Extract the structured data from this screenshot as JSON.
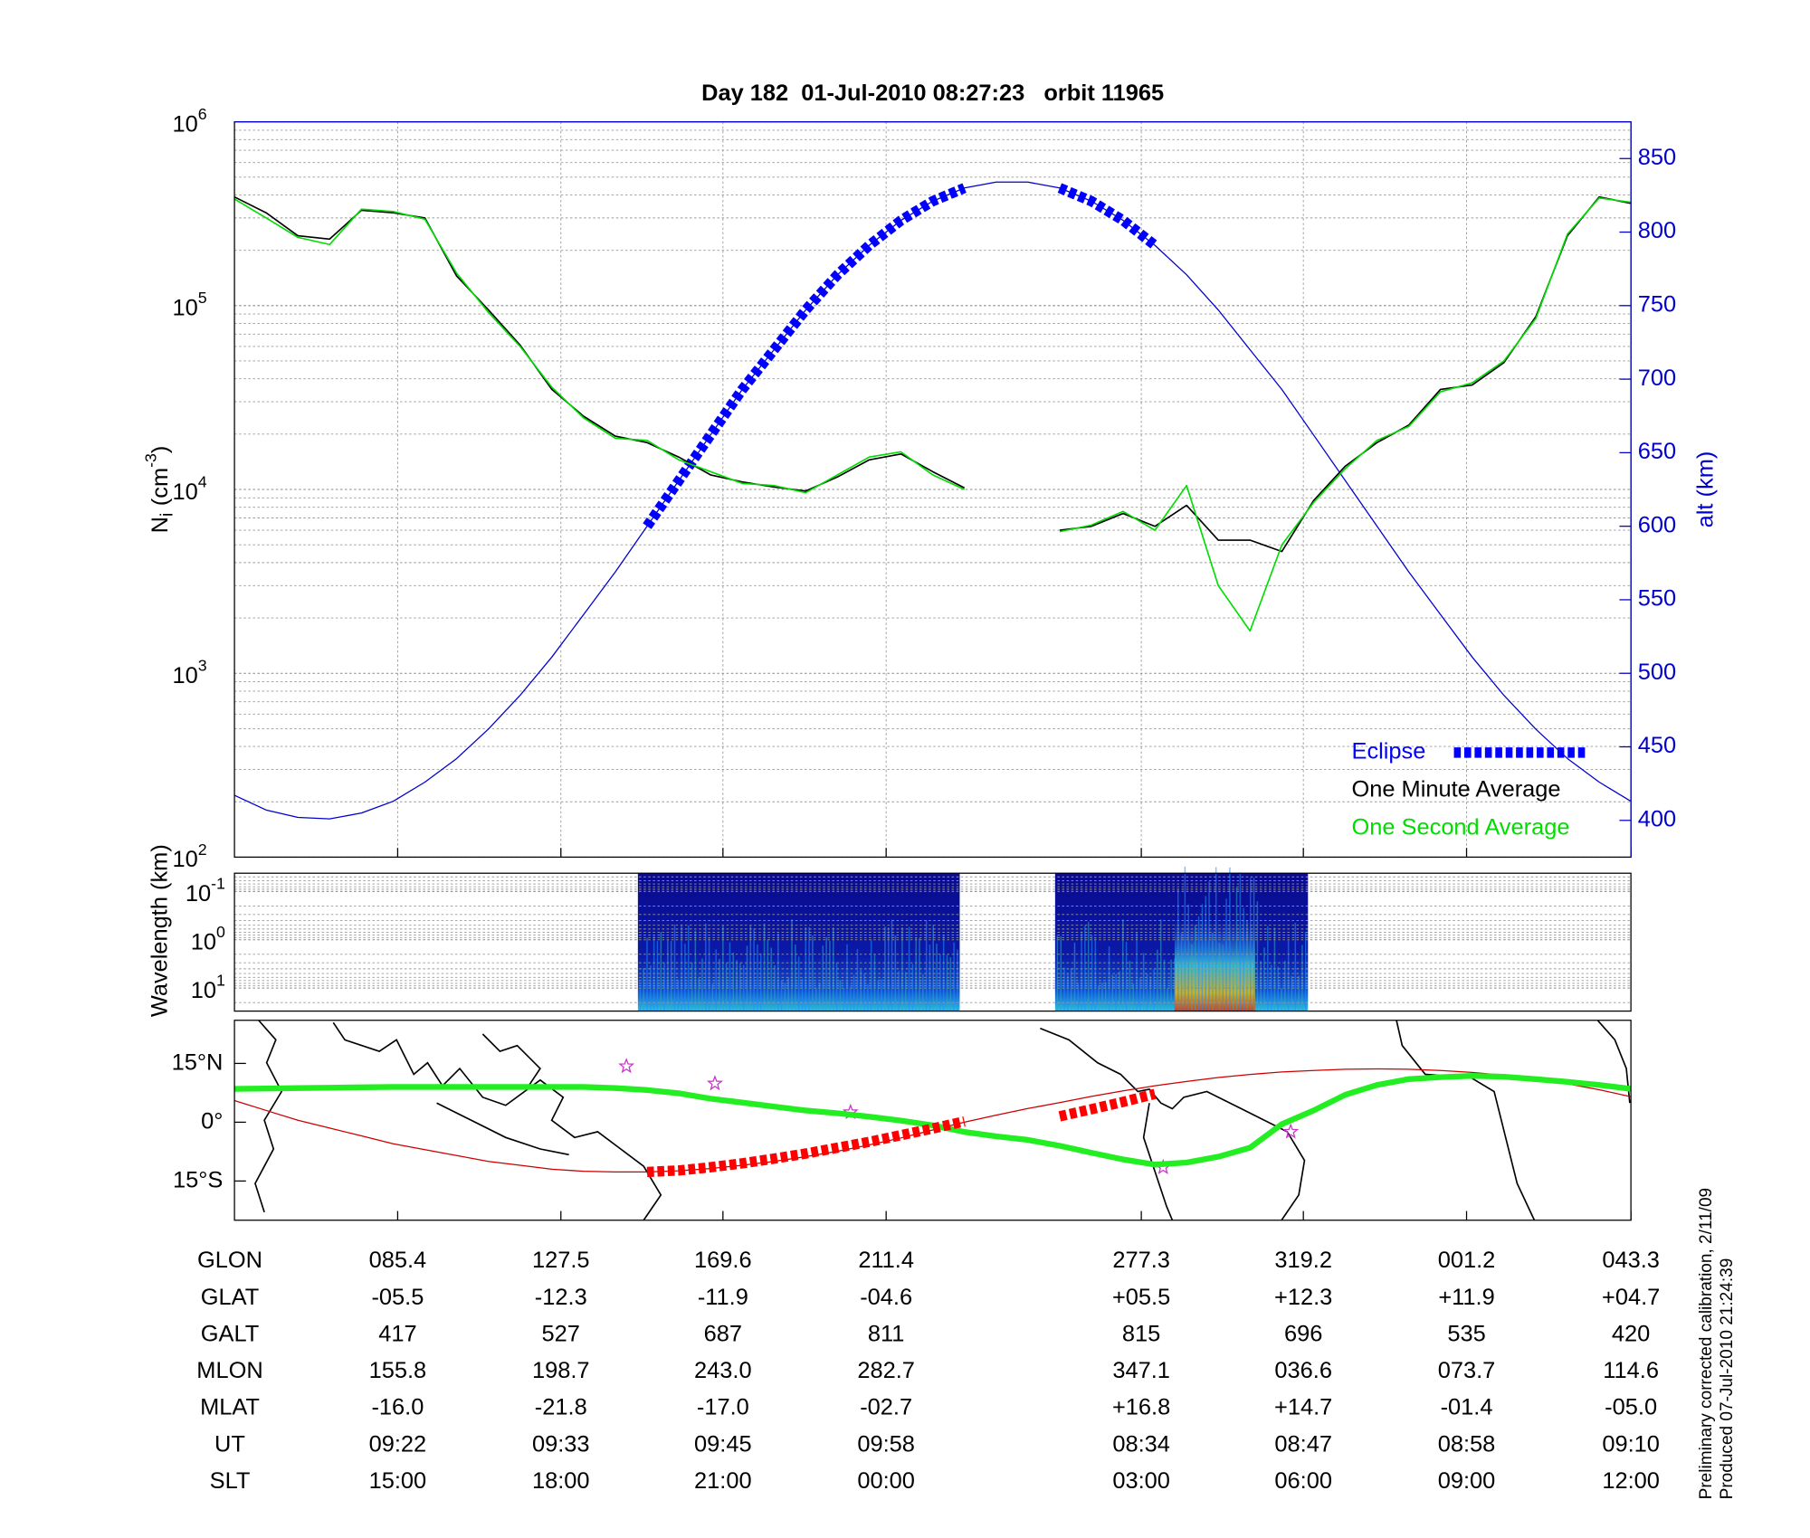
{
  "chart_data": [
    {
      "type": "line",
      "title": "Day 182  01-Jul-2010 08:27:23   orbit 11965",
      "ylabel": {
        "symbol": "N",
        "subscript": "i",
        "unit": "(cm",
        "exponent": "-3",
        "close": ")"
      },
      "y2label": "alt (km)",
      "yscale": "log",
      "ylim": [
        100,
        1000000
      ],
      "yticks": [
        {
          "value": 100,
          "label": "10",
          "exponent": "2"
        },
        {
          "value": 1000,
          "label": "10",
          "exponent": "3"
        },
        {
          "value": 10000,
          "label": "10",
          "exponent": "4"
        },
        {
          "value": 100000,
          "label": "10",
          "exponent": "5"
        },
        {
          "value": 1000000,
          "label": "10",
          "exponent": "6"
        }
      ],
      "y2lim": [
        375,
        875
      ],
      "y2ticks": [
        400,
        450,
        500,
        550,
        600,
        650,
        700,
        750,
        800,
        850
      ],
      "grid": true,
      "legend": "lower right",
      "series": [
        {
          "color": "#0000cc",
          "axis": "y2",
          "style": "thin",
          "values": [
            417,
            407,
            402,
            401,
            405,
            413,
            426,
            442,
            462,
            485,
            511,
            540,
            569,
            600,
            631,
            662,
            693,
            720,
            747,
            771,
            791,
            808,
            821,
            830,
            834,
            834,
            830,
            821,
            808,
            791,
            771,
            747,
            720,
            693,
            662,
            631,
            600,
            569,
            540,
            511,
            485,
            462,
            442,
            426,
            413
          ]
        },
        {
          "name": "Eclipse",
          "color": "#0000ff",
          "axis": "y2",
          "style": "dashed",
          "values": [
            null,
            null,
            null,
            null,
            null,
            null,
            null,
            null,
            null,
            null,
            null,
            null,
            null,
            600,
            631,
            662,
            693,
            720,
            747,
            771,
            791,
            808,
            821,
            830,
            null,
            null,
            830,
            821,
            808,
            791,
            null,
            null,
            null,
            null,
            null,
            null,
            null,
            null,
            null,
            null,
            null,
            null,
            null,
            null,
            null
          ]
        },
        {
          "name": "One Minute Average",
          "color": "#000000",
          "style": "normal",
          "values": [
            390000,
            320000,
            240000,
            230000,
            330000,
            320000,
            300000,
            145000,
            95000,
            61000,
            35000,
            25000,
            19500,
            18000,
            15000,
            12000,
            11000,
            10300,
            9800,
            11700,
            14500,
            15600,
            12500,
            10200,
            null,
            null,
            6000,
            6300,
            7400,
            6300,
            8200,
            5300,
            5300,
            4600,
            8700,
            13400,
            18000,
            22400,
            35000,
            37000,
            49000,
            87000,
            240000,
            390000,
            360000
          ]
        },
        {
          "name": "One Second Average",
          "color": "#00dd00",
          "style": "normal",
          "values": [
            380000,
            300000,
            235000,
            215000,
            335000,
            325000,
            295000,
            150000,
            92000,
            60000,
            36000,
            24500,
            19000,
            18500,
            14500,
            12500,
            10800,
            10500,
            9600,
            12000,
            15000,
            16000,
            12000,
            10000,
            null,
            null,
            5900,
            6400,
            7600,
            6000,
            10500,
            3000,
            1700,
            5000,
            8500,
            13000,
            18500,
            22000,
            34000,
            38000,
            50000,
            85000,
            245000,
            385000,
            365000
          ]
        }
      ]
    },
    {
      "type": "spectrogram",
      "ylabel": "Wavelength (km)",
      "yscale": "log",
      "ylim": [
        30,
        0.042
      ],
      "yticks": [
        {
          "value": 0.1,
          "label": "10",
          "exponent": "-1"
        },
        {
          "value": 1,
          "label": "10",
          "exponent": "0"
        },
        {
          "value": 10,
          "label": "10",
          "exponent": "1"
        }
      ]
    },
    {
      "type": "line",
      "ylim": [
        -25,
        26
      ],
      "yticks": [
        {
          "value": 15,
          "label": "15°N"
        },
        {
          "value": 0,
          "label": "0°"
        },
        {
          "value": -15,
          "label": "15°S"
        }
      ],
      "series": [
        {
          "color": "#cc0000",
          "style": "thin",
          "values": [
            5.5,
            3.0,
            0.5,
            -1.5,
            -3.5,
            -5.5,
            -7.0,
            -8.5,
            -10.0,
            -11.0,
            -12.0,
            -12.5,
            -12.7,
            -12.7,
            -12.4,
            -11.8,
            -11.0,
            -10.0,
            -8.8,
            -7.4,
            -5.8,
            -4.0,
            -2.0,
            0.0,
            1.8,
            3.5,
            5.0,
            6.6,
            8.0,
            9.3,
            10.4,
            11.4,
            12.2,
            12.8,
            13.2,
            13.5,
            13.6,
            13.5,
            13.2,
            12.7,
            12.0,
            11.0,
            9.8,
            8.3,
            6.5
          ]
        },
        {
          "color": "#22ee22",
          "style": "thick",
          "values": [
            8.5,
            8.6,
            8.7,
            8.8,
            8.9,
            9.0,
            9.0,
            9.0,
            9.0,
            9.0,
            9.0,
            9.0,
            8.7,
            8.2,
            7.4,
            6.0,
            5.0,
            4.0,
            3.0,
            2.3,
            1.4,
            0.4,
            -0.8,
            -2.5,
            -3.6,
            -4.5,
            -6.0,
            -7.8,
            -9.5,
            -10.8,
            -10.3,
            -8.8,
            -6.5,
            -0.5,
            3.0,
            7.0,
            9.5,
            11.0,
            11.5,
            11.8,
            11.6,
            11.0,
            10.3,
            9.5,
            8.5
          ]
        },
        {
          "color": "#ff0000",
          "style": "dashed",
          "values": [
            null,
            null,
            null,
            null,
            null,
            null,
            null,
            null,
            null,
            null,
            null,
            null,
            null,
            -12.7,
            -12.3,
            -11.5,
            -10.5,
            -9.3,
            -8.0,
            -6.5,
            -5.0,
            -3.3,
            -1.6,
            0.2,
            null,
            null,
            1.5,
            3.3,
            5.2,
            7.2,
            null,
            null,
            null,
            null,
            null,
            null,
            null,
            null,
            null,
            null,
            null,
            null,
            null,
            null,
            null
          ]
        }
      ]
    }
  ],
  "table": {
    "rows": [
      {
        "label": "GLON",
        "values": [
          "085.4",
          "127.5",
          "169.6",
          "211.4",
          "277.3",
          "319.2",
          "001.2",
          "043.3"
        ]
      },
      {
        "label": "GLAT",
        "values": [
          "-05.5",
          "-12.3",
          "-11.9",
          "-04.6",
          "+05.5",
          "+12.3",
          "+11.9",
          "+04.7"
        ]
      },
      {
        "label": "GALT",
        "values": [
          "417",
          "527",
          "687",
          "811",
          "815",
          "696",
          "535",
          "420"
        ]
      },
      {
        "label": "MLON",
        "values": [
          "155.8",
          "198.7",
          "243.0",
          "282.7",
          "347.1",
          "036.6",
          "073.7",
          "114.6"
        ]
      },
      {
        "label": "MLAT",
        "values": [
          "-16.0",
          "-21.8",
          "-17.0",
          "-02.7",
          "+16.8",
          "+14.7",
          "-01.4",
          "-05.0"
        ]
      },
      {
        "label": "UT",
        "values": [
          "09:22",
          "09:33",
          "09:45",
          "09:58",
          "08:34",
          "08:47",
          "08:58",
          "09:10"
        ]
      },
      {
        "label": "SLT",
        "values": [
          "15:00",
          "18:00",
          "21:00",
          "00:00",
          "03:00",
          "06:00",
          "09:00",
          "12:00"
        ]
      }
    ]
  },
  "footnotes": [
    "Preliminary corrected calibration, 2/11/09",
    "Produced 07-Jul-2010 21:24:39"
  ]
}
